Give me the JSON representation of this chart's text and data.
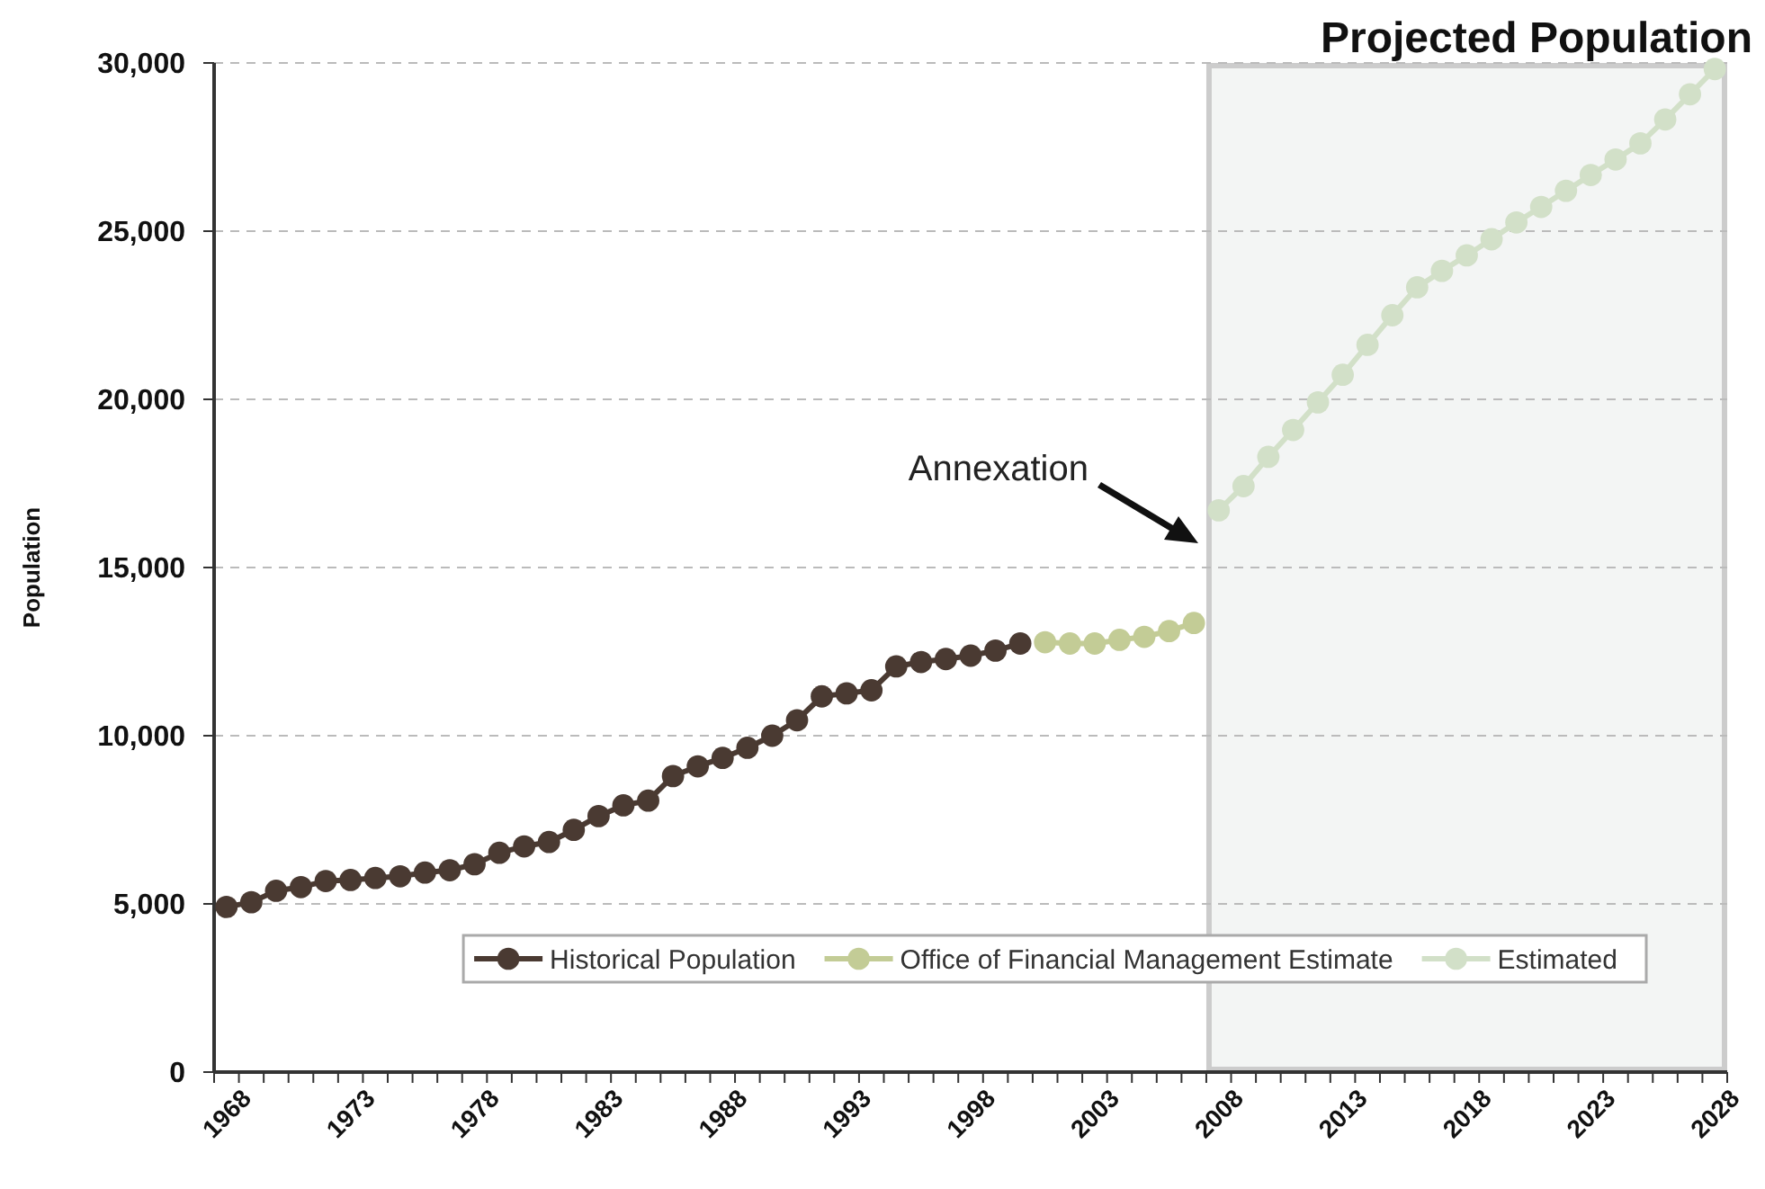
{
  "chart_data": {
    "type": "line",
    "title": "Projected Population",
    "ylabel": "Population",
    "categories": [
      "1968",
      null,
      null,
      null,
      null,
      "1973",
      null,
      null,
      null,
      null,
      "1978",
      null,
      null,
      null,
      null,
      "1983",
      null,
      null,
      null,
      null,
      "1988",
      null,
      null,
      null,
      null,
      "1993",
      null,
      null,
      null,
      null,
      "1998",
      null,
      null,
      null,
      null,
      "2003",
      null,
      null,
      null,
      null,
      "2008",
      null,
      null,
      null,
      null,
      "2013",
      null,
      null,
      null,
      null,
      "2018",
      null,
      null,
      null,
      null,
      "2023",
      null,
      null,
      null,
      null,
      "2028"
    ],
    "series": [
      {
        "name": "Historical Population",
        "color": "#4a3a32",
        "values": [
          4910,
          5050,
          5390,
          5500,
          5680,
          5710,
          5770,
          5820,
          5930,
          6000,
          6180,
          6520,
          6710,
          6840,
          7200,
          7610,
          7930,
          8070,
          8800,
          9090,
          9340,
          9640,
          10000,
          10460,
          11170,
          11260,
          11350,
          12060,
          12190,
          12280,
          12380,
          12530,
          12740,
          null,
          null,
          null,
          null,
          null,
          null,
          null,
          null,
          null,
          null,
          null,
          null,
          null,
          null,
          null,
          null,
          null,
          null,
          null,
          null,
          null,
          null,
          null,
          null,
          null,
          null,
          null,
          null
        ]
      },
      {
        "name": "Office of Financial Management Estimate",
        "color": "#c3cc96",
        "values": [
          null,
          null,
          null,
          null,
          null,
          null,
          null,
          null,
          null,
          null,
          null,
          null,
          null,
          null,
          null,
          null,
          null,
          null,
          null,
          null,
          null,
          null,
          null,
          null,
          null,
          null,
          null,
          null,
          null,
          null,
          null,
          null,
          null,
          12780,
          12740,
          12740,
          12850,
          12940,
          13110,
          13350,
          null,
          null,
          null,
          null,
          null,
          null,
          null,
          null,
          null,
          null,
          null,
          null,
          null,
          null,
          null,
          null,
          null,
          null,
          null,
          null,
          null
        ]
      },
      {
        "name": "Estimated",
        "color": "#d2e0c8",
        "values": [
          null,
          null,
          null,
          null,
          null,
          null,
          null,
          null,
          null,
          null,
          null,
          null,
          null,
          null,
          null,
          null,
          null,
          null,
          null,
          null,
          null,
          null,
          null,
          null,
          null,
          null,
          null,
          null,
          null,
          null,
          null,
          null,
          null,
          null,
          null,
          null,
          null,
          null,
          null,
          null,
          16700,
          17420,
          18290,
          19090,
          19910,
          20730,
          21620,
          22500,
          23330,
          23820,
          24280,
          24760,
          25260,
          25720,
          26200,
          26670,
          27130,
          27610,
          28320,
          29070,
          29820
        ]
      }
    ],
    "ylim": [
      0,
      30000
    ],
    "yticks": [
      {
        "value": 0,
        "label": "0"
      },
      {
        "value": 5000,
        "label": "5,000"
      },
      {
        "value": 10000,
        "label": "10,000"
      },
      {
        "value": 15000,
        "label": "15,000"
      },
      {
        "value": 20000,
        "label": "20,000"
      },
      {
        "value": 25000,
        "label": "25,000"
      },
      {
        "value": 30000,
        "label": "30,000"
      }
    ],
    "grid": "y",
    "marker": "circle",
    "line_style": "solid",
    "legend": "bottom right",
    "bands": [
      {
        "axis": "x",
        "from": "2008",
        "to": "2028",
        "color": "#f3f5f4"
      }
    ],
    "annotations": [
      "Annexation"
    ]
  }
}
